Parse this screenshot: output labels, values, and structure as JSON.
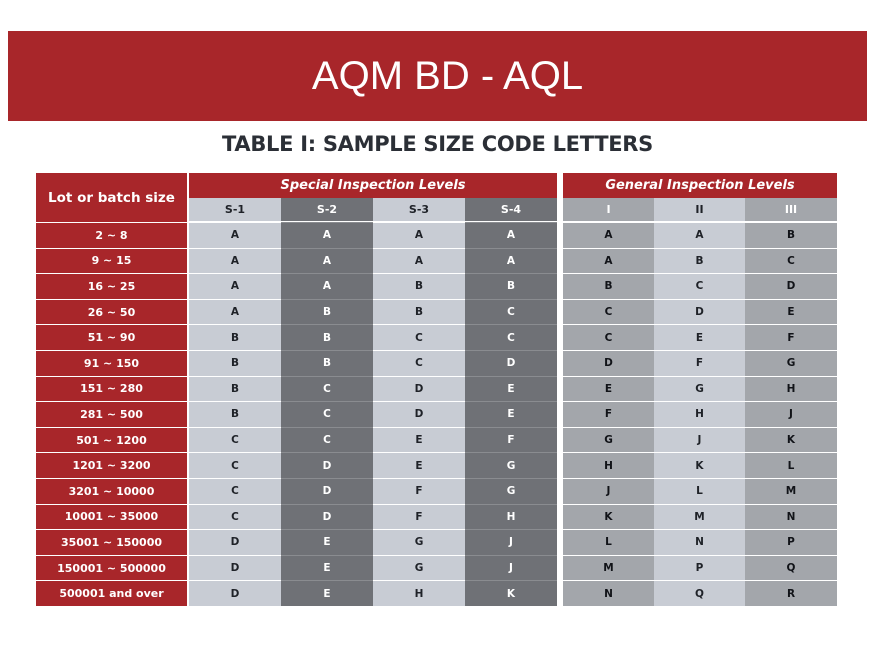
{
  "banner": {
    "title": "AQM BD - AQL"
  },
  "table": {
    "title": "TABLE I: SAMPLE SIZE CODE LETTERS",
    "lot_header": "Lot or batch size",
    "special_header": "Special Inspection Levels",
    "general_header": "General Inspection Levels",
    "special_levels": [
      "S-1",
      "S-2",
      "S-3",
      "S-4"
    ],
    "general_levels": [
      "I",
      "II",
      "III"
    ],
    "rows": [
      {
        "lot": "2 ~ 8",
        "special": [
          "A",
          "A",
          "A",
          "A"
        ],
        "general": [
          "A",
          "A",
          "B"
        ]
      },
      {
        "lot": "9 ~ 15",
        "special": [
          "A",
          "A",
          "A",
          "A"
        ],
        "general": [
          "A",
          "B",
          "C"
        ]
      },
      {
        "lot": "16 ~ 25",
        "special": [
          "A",
          "A",
          "B",
          "B"
        ],
        "general": [
          "B",
          "C",
          "D"
        ]
      },
      {
        "lot": "26 ~ 50",
        "special": [
          "A",
          "B",
          "B",
          "C"
        ],
        "general": [
          "C",
          "D",
          "E"
        ]
      },
      {
        "lot": "51 ~ 90",
        "special": [
          "B",
          "B",
          "C",
          "C"
        ],
        "general": [
          "C",
          "E",
          "F"
        ]
      },
      {
        "lot": "91 ~ 150",
        "special": [
          "B",
          "B",
          "C",
          "D"
        ],
        "general": [
          "D",
          "F",
          "G"
        ]
      },
      {
        "lot": "151 ~ 280",
        "special": [
          "B",
          "C",
          "D",
          "E"
        ],
        "general": [
          "E",
          "G",
          "H"
        ]
      },
      {
        "lot": "281 ~ 500",
        "special": [
          "B",
          "C",
          "D",
          "E"
        ],
        "general": [
          "F",
          "H",
          "J"
        ]
      },
      {
        "lot": "501 ~ 1200",
        "special": [
          "C",
          "C",
          "E",
          "F"
        ],
        "general": [
          "G",
          "J",
          "K"
        ]
      },
      {
        "lot": "1201 ~ 3200",
        "special": [
          "C",
          "D",
          "E",
          "G"
        ],
        "general": [
          "H",
          "K",
          "L"
        ]
      },
      {
        "lot": "3201 ~ 10000",
        "special": [
          "C",
          "D",
          "F",
          "G"
        ],
        "general": [
          "J",
          "L",
          "M"
        ]
      },
      {
        "lot": "10001 ~ 35000",
        "special": [
          "C",
          "D",
          "F",
          "H"
        ],
        "general": [
          "K",
          "M",
          "N"
        ]
      },
      {
        "lot": "35001 ~ 150000",
        "special": [
          "D",
          "E",
          "G",
          "J"
        ],
        "general": [
          "L",
          "N",
          "P"
        ]
      },
      {
        "lot": "150001 ~ 500000",
        "special": [
          "D",
          "E",
          "G",
          "J"
        ],
        "general": [
          "M",
          "P",
          "Q"
        ]
      },
      {
        "lot": "500001 and over",
        "special": [
          "D",
          "E",
          "H",
          "K"
        ],
        "general": [
          "N",
          "Q",
          "R"
        ]
      }
    ]
  }
}
